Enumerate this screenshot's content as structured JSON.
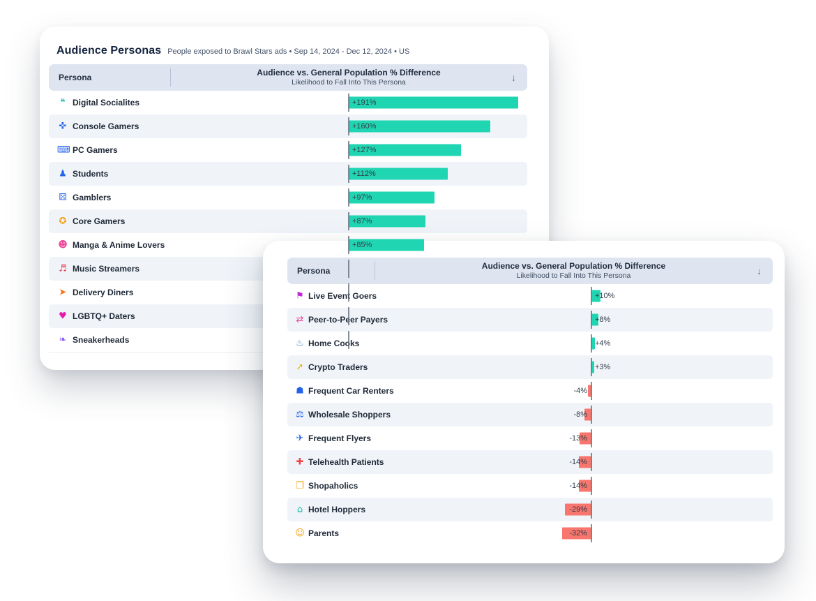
{
  "back_card": {
    "title": "Audience Personas",
    "subtitle": "People exposed to Brawl Stars ads • Sep 14, 2024 - Dec 12, 2024 • US",
    "table": {
      "col_persona": "Persona",
      "col_value_title": "Audience vs. General Population % Difference",
      "col_value_subtitle": "Likelihood to Fall Into This Persona",
      "sort_icon": "arrow-down",
      "rows": [
        {
          "label": "Digital Socialites",
          "icon": "speech-bubble-icon",
          "icon_color": "#14b8a6",
          "value": 191,
          "display": "+191%"
        },
        {
          "label": "Console Gamers",
          "icon": "game-controller-icon",
          "icon_color": "#2563eb",
          "value": 160,
          "display": "+160%"
        },
        {
          "label": "PC Gamers",
          "icon": "laptop-icon",
          "icon_color": "#2563eb",
          "value": 127,
          "display": "+127%"
        },
        {
          "label": "Students",
          "icon": "student-icon",
          "icon_color": "#2563eb",
          "value": 112,
          "display": "+112%"
        },
        {
          "label": "Gamblers",
          "icon": "casino-chip-icon",
          "icon_color": "#2563eb",
          "value": 97,
          "display": "+97%"
        },
        {
          "label": "Core Gamers",
          "icon": "medal-icon",
          "icon_color": "#f59e0b",
          "value": 87,
          "display": "+87%"
        },
        {
          "label": "Manga & Anime Lovers",
          "icon": "cat-face-icon",
          "icon_color": "#ec4899",
          "value": 85,
          "display": "+85%"
        },
        {
          "label": "Music Streamers",
          "icon": "music-note-icon",
          "icon_color": "#e8344e",
          "value": null,
          "display": null
        },
        {
          "label": "Delivery Diners",
          "icon": "delivery-truck-icon",
          "icon_color": "#f97316",
          "value": null,
          "display": null
        },
        {
          "label": "LGBTQ+ Daters",
          "icon": "heart-icon",
          "icon_color": "#e619ae",
          "value": null,
          "display": null
        },
        {
          "label": "Sneakerheads",
          "icon": "sneaker-icon",
          "icon_color": "#8b5cf6",
          "value": null,
          "display": null
        }
      ]
    }
  },
  "front_card": {
    "table": {
      "col_persona": "Persona",
      "col_value_title": "Audience vs. General Population % Difference",
      "col_value_subtitle": "Likelihood to Fall Into This Persona",
      "sort_icon": "arrow-down",
      "rows": [
        {
          "label": "Live Event Goers",
          "icon": "ticket-icon",
          "icon_color": "#c026d3",
          "value": 10,
          "display": "+10%"
        },
        {
          "label": "Peer-to-Peer Payers",
          "icon": "transfer-arrows-icon",
          "icon_color": "#ec4899",
          "value": 8,
          "display": "+8%"
        },
        {
          "label": "Home Cooks",
          "icon": "chef-hat-icon",
          "icon_color": "#4a7fb5",
          "value": 4,
          "display": "+4%"
        },
        {
          "label": "Crypto Traders",
          "icon": "crypto-chart-icon",
          "icon_color": "#eab308",
          "value": 3,
          "display": "+3%"
        },
        {
          "label": "Frequent Car Renters",
          "icon": "car-icon",
          "icon_color": "#2563eb",
          "value": -4,
          "display": "-4%"
        },
        {
          "label": "Wholesale Shoppers",
          "icon": "shopping-cart-icon",
          "icon_color": "#2563eb",
          "value": -8,
          "display": "-8%"
        },
        {
          "label": "Frequent Flyers",
          "icon": "airplane-icon",
          "icon_color": "#2563eb",
          "value": -13,
          "display": "-13%"
        },
        {
          "label": "Telehealth Patients",
          "icon": "medical-bag-icon",
          "icon_color": "#ef4444",
          "value": -14,
          "display": "-14%"
        },
        {
          "label": "Shopaholics",
          "icon": "shopping-bag-icon",
          "icon_color": "#f59e0b",
          "value": -14,
          "display": "-14%"
        },
        {
          "label": "Hotel Hoppers",
          "icon": "suitcase-icon",
          "icon_color": "#14b8a6",
          "value": -29,
          "display": "-29%"
        },
        {
          "label": "Parents",
          "icon": "baby-icon",
          "icon_color": "#f59e0b",
          "value": -32,
          "display": "-32%"
        }
      ]
    },
    "colors": {
      "positive_bar": "#20d5b2",
      "negative_bar": "#f8766d",
      "header_bg": "#dee5f1",
      "alt_row_bg": "#f0f4f9"
    }
  }
}
